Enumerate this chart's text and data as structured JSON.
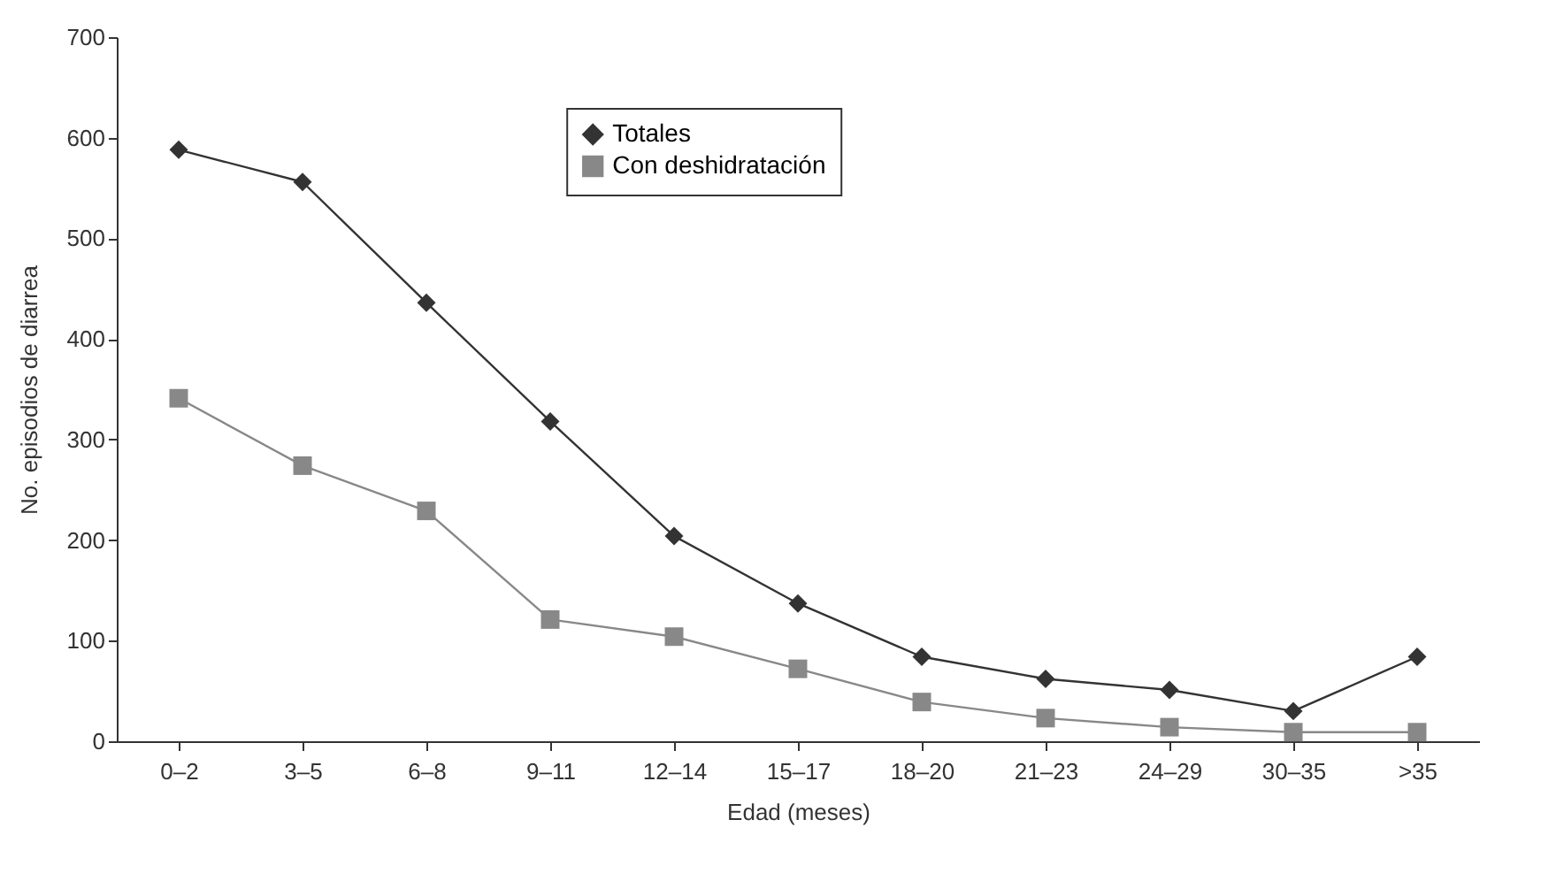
{
  "chart_data": {
    "type": "line",
    "xlabel": "Edad (meses)",
    "ylabel": "No. episodios de diarrea",
    "categories": [
      "0–2",
      "3–5",
      "6–8",
      "9–11",
      "12–14",
      "15–17",
      "18–20",
      "21–23",
      "24–29",
      "30–35",
      ">35"
    ],
    "series": [
      {
        "name": "Totales",
        "color": "#333333",
        "marker": "diamond",
        "values": [
          588,
          556,
          436,
          318,
          204,
          137,
          84,
          62,
          51,
          30,
          84
        ]
      },
      {
        "name": "Con deshidratación",
        "color": "#888888",
        "marker": "square",
        "values": [
          341,
          274,
          229,
          121,
          104,
          72,
          39,
          23,
          14,
          9,
          9
        ]
      }
    ],
    "ylim": [
      0,
      700
    ],
    "yticks": [
      0,
      100,
      200,
      300,
      400,
      500,
      600,
      700
    ],
    "grid": false,
    "legend": "top"
  }
}
